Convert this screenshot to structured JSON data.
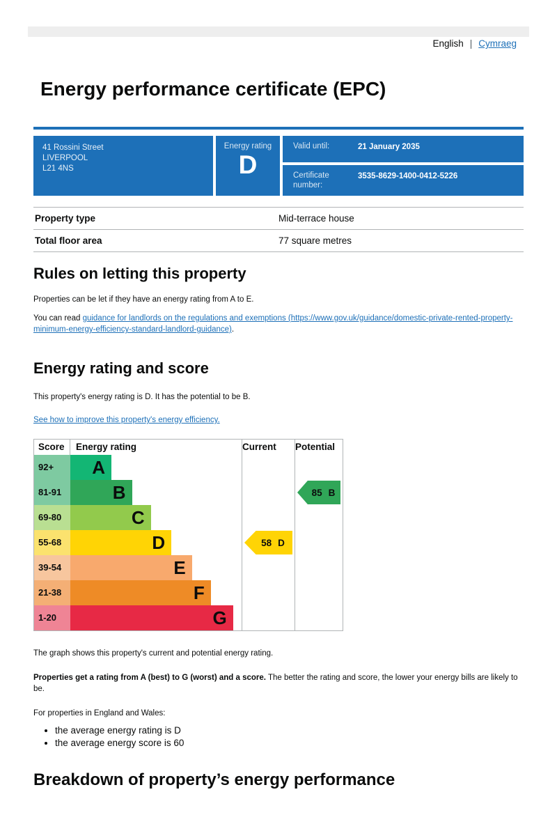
{
  "language": {
    "english": "English",
    "separator": "|",
    "cymraeg": "Cymraeg"
  },
  "title": "Energy performance certificate (EPC)",
  "summary": {
    "address_lines": [
      "41 Rossini Street",
      "LIVERPOOL",
      "L21 4NS"
    ],
    "energy_rating_label": "Energy rating",
    "energy_rating": "D",
    "valid_until_label": "Valid until:",
    "valid_until": "21 January 2035",
    "certificate_number_label": "Certificate number:",
    "certificate_number": "3535-8629-1400-0412-5226"
  },
  "property_table": {
    "rows": [
      {
        "label": "Property type",
        "value": "Mid-terrace house"
      },
      {
        "label": "Total floor area",
        "value": "77 square metres"
      }
    ]
  },
  "rules": {
    "heading": "Rules on letting this property",
    "para1": "Properties can be let if they have an energy rating from A to E.",
    "para2_prefix": "You can read ",
    "para2_link": "guidance for landlords on the regulations and exemptions (https://www.gov.uk/guidance/domestic-private-rented-property-minimum-energy-efficiency-standard-landlord-guidance)",
    "para2_suffix": "."
  },
  "rating_section": {
    "heading": "Energy rating and score",
    "para1": "This property's energy rating is D. It has the potential to be B.",
    "link": "See how to improve this property's energy efficiency."
  },
  "graph_section": {
    "note": "The graph shows this property's current and potential energy rating.",
    "explanation_bold": "Properties get a rating from A (best) to G (worst) and a score.",
    "explanation_rest": " The better the rating and score, the lower your energy bills are likely to be.",
    "averages_intro": "For properties in England and Wales:",
    "bullets": [
      "the average energy rating is D",
      "the average energy score is 60"
    ]
  },
  "breakdown": {
    "heading": "Breakdown of property’s energy performance"
  },
  "colors": {
    "accent_blue": "#1d70b8",
    "link_blue": "#1d70b8",
    "strip_gray": "#eeeeee",
    "border_gray": "#b1b4b6",
    "text": "#0b0c0c"
  },
  "chart_data": {
    "type": "bar",
    "subtype": "epc-energy-rating-bands",
    "title": "Energy rating and score",
    "columns": [
      "Score",
      "Energy rating",
      "Current",
      "Potential"
    ],
    "bands": [
      {
        "range": "92+",
        "letter": "A",
        "color": "#13b674",
        "tint": "#7ecaa1",
        "width_pct": 24
      },
      {
        "range": "81-91",
        "letter": "B",
        "color": "#30a658",
        "tint": "#7ecaa1",
        "width_pct": 36
      },
      {
        "range": "69-80",
        "letter": "C",
        "color": "#92ca4c",
        "tint": "#b9df92",
        "width_pct": 47
      },
      {
        "range": "55-68",
        "letter": "D",
        "color": "#ffd405",
        "tint": "#fbe26e",
        "width_pct": 59
      },
      {
        "range": "39-54",
        "letter": "E",
        "color": "#f8a96d",
        "tint": "#f7c69e",
        "width_pct": 71
      },
      {
        "range": "21-38",
        "letter": "F",
        "color": "#ee8b26",
        "tint": "#f4af75",
        "width_pct": 82
      },
      {
        "range": "1-20",
        "letter": "G",
        "color": "#e72945",
        "tint": "#ef8495",
        "width_pct": 95
      }
    ],
    "current": {
      "score": 58,
      "band": "D"
    },
    "potential": {
      "score": 85,
      "band": "B"
    }
  }
}
